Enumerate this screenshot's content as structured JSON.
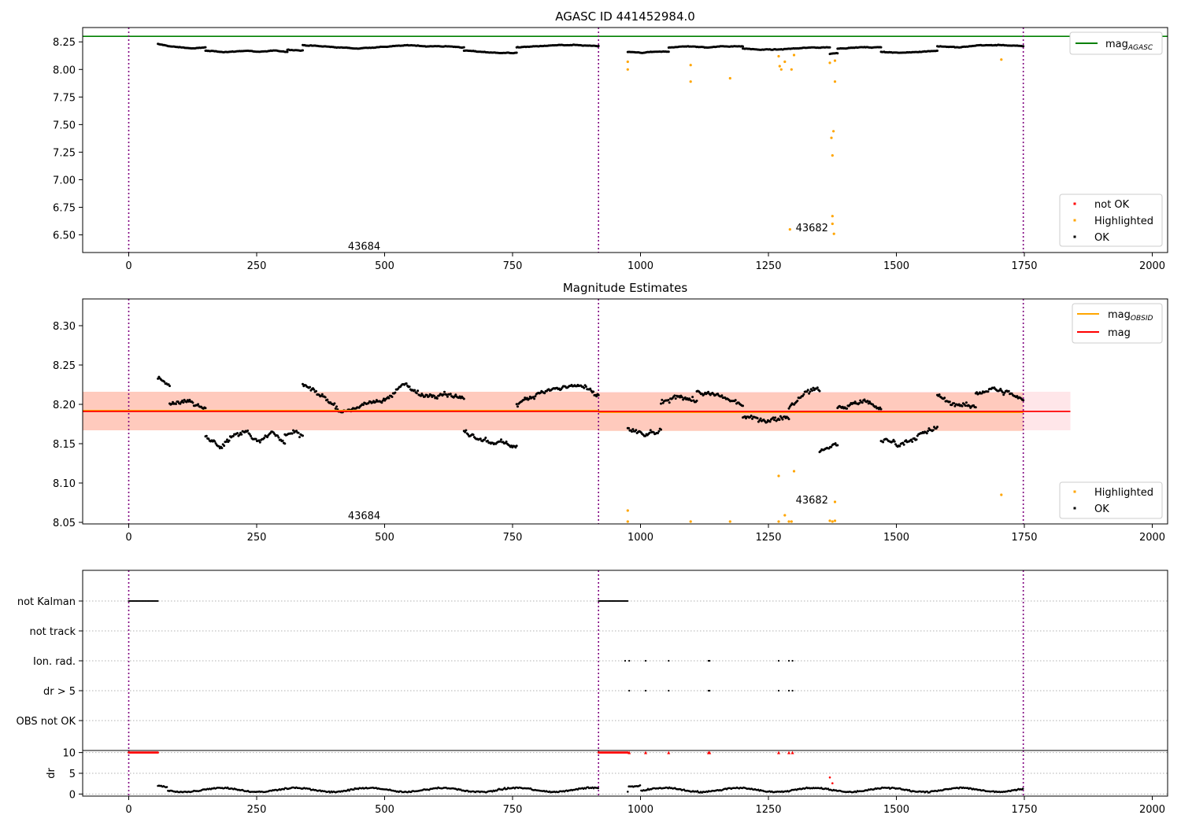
{
  "chart_data": [
    {
      "type": "scatter",
      "title": "AGASC ID 441452984.0",
      "xlim": [
        -90,
        2030
      ],
      "ylim": [
        6.34,
        8.38
      ],
      "x_ticks": [
        0,
        250,
        500,
        750,
        1000,
        1250,
        1500,
        1750,
        2000
      ],
      "y_ticks": [
        6.5,
        6.75,
        7.0,
        7.25,
        7.5,
        7.75,
        8.0,
        8.25
      ],
      "vlines": [
        0,
        918,
        1748
      ],
      "reference_line": {
        "label_base": "mag",
        "label_sub": "AGASC",
        "value": 8.3,
        "color": "#008000"
      },
      "annotations": [
        {
          "text": "43684",
          "x": 460,
          "y": 6.4
        },
        {
          "text": "43682",
          "x": 1335,
          "y": 6.57
        }
      ],
      "legend": {
        "placement": "lower-right",
        "entries": [
          {
            "label": "not OK",
            "color": "#ff0000"
          },
          {
            "label": "Highlighted",
            "color": "#ffa500"
          },
          {
            "label": "OK",
            "color": "#000000"
          }
        ]
      },
      "ok_segments": [
        {
          "x": [
            57,
            150
          ],
          "levels": [
            8.23,
            8.21,
            8.2,
            8.19,
            8.2
          ]
        },
        {
          "x": [
            150,
            310
          ],
          "levels": [
            8.17,
            8.16,
            8.16,
            8.17,
            8.16,
            8.17,
            8.16
          ]
        },
        {
          "x": [
            310,
            340
          ],
          "levels": [
            8.18,
            8.17
          ]
        },
        {
          "x": [
            340,
            655
          ],
          "levels": [
            8.22,
            8.21,
            8.2,
            8.19,
            8.2,
            8.21,
            8.22,
            8.21,
            8.21,
            8.2
          ]
        },
        {
          "x": [
            655,
            758
          ],
          "levels": [
            8.17,
            8.16,
            8.15,
            8.15
          ]
        },
        {
          "x": [
            758,
            918
          ],
          "levels": [
            8.2,
            8.21,
            8.22,
            8.22,
            8.21
          ]
        },
        {
          "x": [
            975,
            1055
          ],
          "levels": [
            8.16,
            8.15,
            8.16,
            8.16
          ]
        },
        {
          "x": [
            1055,
            1200
          ],
          "levels": [
            8.2,
            8.21,
            8.2,
            8.21,
            8.21
          ]
        },
        {
          "x": [
            1200,
            1370
          ],
          "levels": [
            8.19,
            8.18,
            8.18,
            8.19,
            8.2,
            8.2
          ]
        },
        {
          "x": [
            1370,
            1385
          ],
          "levels": [
            8.14,
            8.15
          ]
        },
        {
          "x": [
            1385,
            1470
          ],
          "levels": [
            8.19,
            8.2,
            8.2
          ]
        },
        {
          "x": [
            1470,
            1580
          ],
          "levels": [
            8.16,
            8.15,
            8.16,
            8.17
          ]
        },
        {
          "x": [
            1580,
            1748
          ],
          "levels": [
            8.21,
            8.2,
            8.22,
            8.22,
            8.21
          ]
        }
      ],
      "highlighted_points": [
        [
          975,
          8.07
        ],
        [
          975,
          8.0
        ],
        [
          1098,
          8.04
        ],
        [
          1098,
          7.89
        ],
        [
          1175,
          7.92
        ],
        [
          1270,
          8.12
        ],
        [
          1272,
          8.03
        ],
        [
          1275,
          8.0
        ],
        [
          1282,
          8.07
        ],
        [
          1292,
          6.55
        ],
        [
          1295,
          8.0
        ],
        [
          1300,
          8.13
        ],
        [
          1370,
          8.06
        ],
        [
          1373,
          7.38
        ],
        [
          1375,
          7.22
        ],
        [
          1375,
          6.67
        ],
        [
          1375,
          6.6
        ],
        [
          1377,
          7.44
        ],
        [
          1378,
          6.51
        ],
        [
          1380,
          7.89
        ],
        [
          1380,
          8.08
        ],
        [
          1705,
          8.09
        ]
      ]
    },
    {
      "type": "scatter",
      "title": "Magnitude Estimates",
      "xlim": [
        -90,
        2030
      ],
      "ylim": [
        8.048,
        8.334
      ],
      "x_ticks": [
        0,
        250,
        500,
        750,
        1000,
        1250,
        1500,
        1750,
        2000
      ],
      "y_ticks": [
        8.05,
        8.1,
        8.15,
        8.2,
        8.25,
        8.3
      ],
      "vlines": [
        0,
        918,
        1748
      ],
      "mag_line": {
        "value": 8.191,
        "band": [
          8.167,
          8.216
        ],
        "x": [
          -90,
          1840
        ],
        "color": "#ff0000"
      },
      "obsid_lines": [
        {
          "x": [
            -90,
            918
          ],
          "value": 8.192,
          "band": [
            8.167,
            8.216
          ]
        },
        {
          "x": [
            918,
            1748
          ],
          "value": 8.19,
          "band": [
            8.166,
            8.215
          ]
        }
      ],
      "annotations": [
        {
          "text": "43684",
          "x": 460,
          "y": 8.059
        },
        {
          "text": "43682",
          "x": 1335,
          "y": 8.079
        }
      ],
      "legend_lines": {
        "placement": "upper-right",
        "entries": [
          {
            "label_base": "mag",
            "label_sub": "OBSID",
            "color": "#ffa500"
          },
          {
            "label_base": "mag",
            "label_sub": "",
            "color": "#ff0000"
          }
        ]
      },
      "legend_points": {
        "placement": "lower-right",
        "entries": [
          {
            "label": "Highlighted",
            "color": "#ffa500"
          },
          {
            "label": "OK",
            "color": "#000000"
          }
        ]
      },
      "ok_segments": [
        {
          "x": [
            57,
            80
          ],
          "levels": [
            8.235,
            8.225
          ]
        },
        {
          "x": [
            80,
            150
          ],
          "levels": [
            8.2,
            8.205,
            8.195
          ]
        },
        {
          "x": [
            150,
            305
          ],
          "levels": [
            8.16,
            8.145,
            8.16,
            8.165,
            8.155,
            8.165,
            8.15
          ]
        },
        {
          "x": [
            305,
            340
          ],
          "levels": [
            8.165,
            8.16
          ]
        },
        {
          "x": [
            340,
            655
          ],
          "levels": [
            8.225,
            8.21,
            8.19,
            8.2,
            8.205,
            8.225,
            8.21,
            8.215,
            8.205
          ]
        },
        {
          "x": [
            655,
            758
          ],
          "levels": [
            8.165,
            8.155,
            8.15,
            8.148
          ]
        },
        {
          "x": [
            758,
            918
          ],
          "levels": [
            8.2,
            8.215,
            8.22,
            8.225,
            8.21
          ]
        },
        {
          "x": [
            975,
            1040
          ],
          "levels": [
            8.17,
            8.16,
            8.165
          ]
        },
        {
          "x": [
            1040,
            1110
          ],
          "levels": [
            8.2,
            8.21,
            8.205
          ]
        },
        {
          "x": [
            1110,
            1200
          ],
          "levels": [
            8.215,
            8.21,
            8.2
          ]
        },
        {
          "x": [
            1200,
            1290
          ],
          "levels": [
            8.185,
            8.18,
            8.185
          ]
        },
        {
          "x": [
            1290,
            1350
          ],
          "levels": [
            8.195,
            8.215,
            8.22
          ]
        },
        {
          "x": [
            1350,
            1385
          ],
          "levels": [
            8.14,
            8.15
          ]
        },
        {
          "x": [
            1385,
            1470
          ],
          "levels": [
            8.195,
            8.205,
            8.195
          ]
        },
        {
          "x": [
            1470,
            1580
          ],
          "levels": [
            8.155,
            8.15,
            8.16,
            8.17
          ]
        },
        {
          "x": [
            1580,
            1655
          ],
          "levels": [
            8.21,
            8.2,
            8.195
          ]
        },
        {
          "x": [
            1655,
            1748
          ],
          "levels": [
            8.215,
            8.22,
            8.215,
            8.205
          ]
        }
      ],
      "highlighted_points": [
        [
          975,
          8.065
        ],
        [
          975,
          8.051
        ],
        [
          1098,
          8.051
        ],
        [
          1175,
          8.051
        ],
        [
          1270,
          8.109
        ],
        [
          1270,
          8.051
        ],
        [
          1282,
          8.059
        ],
        [
          1290,
          8.051
        ],
        [
          1295,
          8.051
        ],
        [
          1300,
          8.115
        ],
        [
          1370,
          8.052
        ],
        [
          1375,
          8.051
        ],
        [
          1380,
          8.076
        ],
        [
          1380,
          8.052
        ],
        [
          1705,
          8.085
        ]
      ]
    },
    {
      "type": "scatter",
      "title": "",
      "xlim": [
        -90,
        2030
      ],
      "categories": [
        "not Kalman",
        "not track",
        "Ion. rad.",
        "dr > 5",
        "OBS not OK"
      ],
      "vlines": [
        0,
        918,
        1748
      ],
      "flag_runs": [
        {
          "category": "not Kalman",
          "x": [
            0,
            57
          ]
        },
        {
          "category": "not Kalman",
          "x": [
            918,
            975
          ]
        }
      ],
      "flag_points": {
        "Ion. rad.": [
          970,
          978,
          1010,
          1055,
          1133,
          1135,
          1270,
          1290,
          1297
        ],
        "dr > 5": [
          978,
          1010,
          1055,
          1133,
          1135,
          1270,
          1290,
          1297
        ]
      }
    },
    {
      "type": "scatter",
      "title": "",
      "xlim": [
        -90,
        2030
      ],
      "ylim": [
        -0.5,
        10.5
      ],
      "y_ticks": [
        0,
        5,
        10
      ],
      "ylabel": "dr",
      "x_ticks": [
        0,
        250,
        500,
        750,
        1000,
        1250,
        1500,
        1750,
        2000
      ],
      "vlines": [
        0,
        918,
        1748
      ],
      "capped_runs": [
        {
          "x": [
            0,
            57
          ]
        },
        {
          "x": [
            918,
            975
          ]
        }
      ],
      "capped_points": [
        978,
        1010,
        1055,
        1133,
        1135,
        1270,
        1290,
        1297
      ],
      "outlier_points": [
        [
          1370,
          4.0
        ],
        [
          1375,
          2.6
        ]
      ]
    }
  ]
}
